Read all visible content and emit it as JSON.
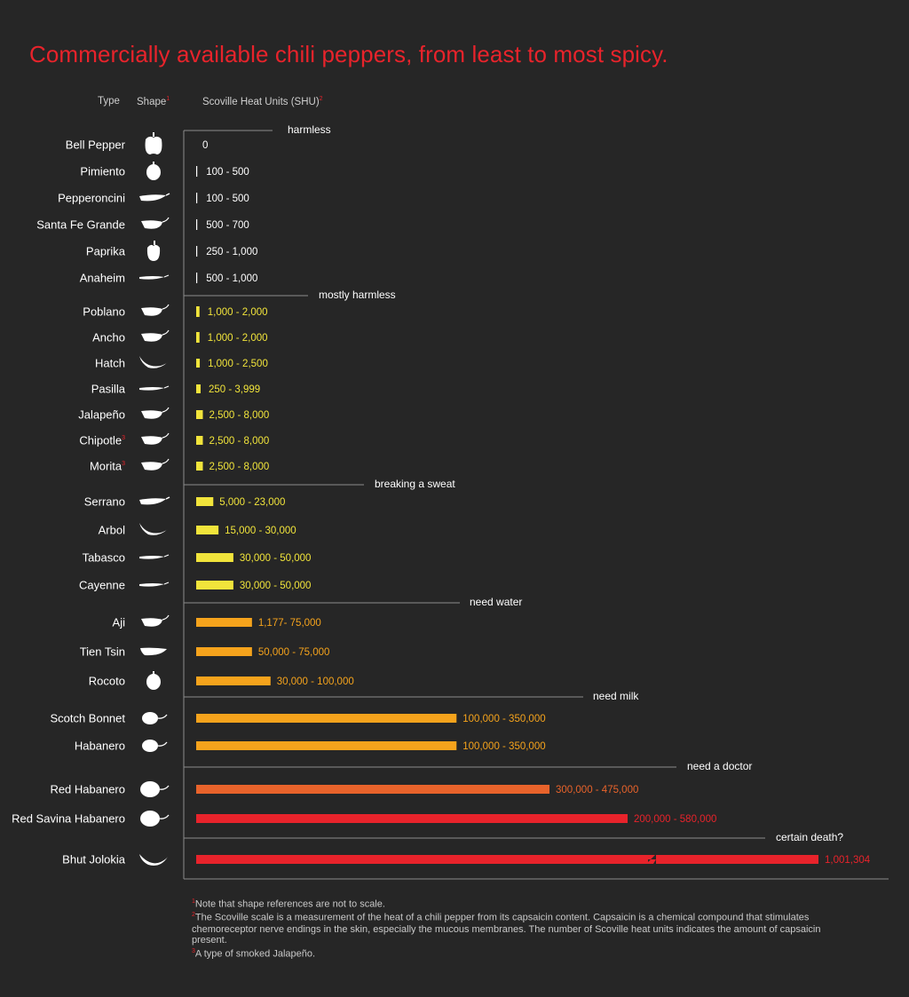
{
  "title": "Commercially available chili peppers, from least to most spicy.",
  "headers": {
    "type": "Type",
    "shape": "Shape",
    "shape_note": "1",
    "shu": "Scoville Heat Units (SHU)",
    "shu_note": "2"
  },
  "colors": {
    "title": "#e8232b",
    "axis": "#8c8c8c",
    "yellow": "#f1e43b",
    "amber": "#f5a31c",
    "orange_red": "#e8632b",
    "red": "#e8232b",
    "white": "#ffffff"
  },
  "chart_data": {
    "type": "bar",
    "orientation": "horizontal",
    "xlabel": "Scoville Heat Units (SHU)",
    "categories": [
      "Bell Pepper",
      "Pimiento",
      "Pepperoncini",
      "Santa Fe Grande",
      "Paprika",
      "Anaheim",
      "Poblano",
      "Ancho",
      "Hatch",
      "Pasilla",
      "Jalapeño",
      "Chipotle",
      "Morita",
      "Serrano",
      "Arbol",
      "Tabasco",
      "Cayenne",
      "Aji",
      "Tien Tsin",
      "Rocoto",
      "Scotch Bonnet",
      "Habanero",
      "Red Habanero",
      "Red Savina Habanero",
      "Bhut Jolokia"
    ],
    "peppers": [
      {
        "name": "Bell Pepper",
        "label": "0",
        "max": 0,
        "color": "#ffffff",
        "shape": "bell-pepper-icon"
      },
      {
        "name": "Pimiento",
        "label": "100 - 500",
        "max": 500,
        "color": "#ffffff",
        "shape": "pimiento-icon"
      },
      {
        "name": "Pepperoncini",
        "label": "100 - 500",
        "max": 500,
        "color": "#ffffff",
        "shape": "pepperoncini-icon"
      },
      {
        "name": "Santa Fe Grande",
        "label": "500 - 700",
        "max": 700,
        "color": "#ffffff",
        "shape": "santa-fe-grande-icon"
      },
      {
        "name": "Paprika",
        "label": "250 - 1,000",
        "max": 1000,
        "color": "#ffffff",
        "shape": "paprika-icon"
      },
      {
        "name": "Anaheim",
        "label": "500 - 1,000",
        "max": 1000,
        "color": "#ffffff",
        "shape": "anaheim-icon"
      },
      {
        "name": "Poblano",
        "label": "1,000 - 2,000",
        "max": 2000,
        "color": "#f1e43b",
        "shape": "poblano-icon"
      },
      {
        "name": "Ancho",
        "label": "1,000 - 2,000",
        "max": 2000,
        "color": "#f1e43b",
        "shape": "ancho-icon"
      },
      {
        "name": "Hatch",
        "label": "1,000 - 2,500",
        "max": 2500,
        "color": "#f1e43b",
        "shape": "hatch-icon"
      },
      {
        "name": "Pasilla",
        "label": "250 - 3,999",
        "max": 3999,
        "color": "#f1e43b",
        "shape": "pasilla-icon"
      },
      {
        "name": "Jalapeño",
        "label": "2,500 - 8,000",
        "max": 8000,
        "color": "#f1e43b",
        "shape": "jalapeno-icon"
      },
      {
        "name": "Chipotle",
        "label": "2,500 - 8,000",
        "max": 8000,
        "color": "#f1e43b",
        "shape": "chipotle-icon",
        "note": "3"
      },
      {
        "name": "Morita",
        "label": "2,500 - 8,000",
        "max": 8000,
        "color": "#f1e43b",
        "shape": "morita-icon",
        "note": "3"
      },
      {
        "name": "Serrano",
        "label": "5,000 - 23,000",
        "max": 23000,
        "color": "#f1e43b",
        "shape": "serrano-icon"
      },
      {
        "name": "Arbol",
        "label": "15,000 - 30,000",
        "max": 30000,
        "color": "#f1e43b",
        "shape": "arbol-icon"
      },
      {
        "name": "Tabasco",
        "label": "30,000 - 50,000",
        "max": 50000,
        "color": "#f1e43b",
        "shape": "tabasco-icon"
      },
      {
        "name": "Cayenne",
        "label": "30,000 - 50,000",
        "max": 50000,
        "color": "#f1e43b",
        "shape": "cayenne-icon"
      },
      {
        "name": "Aji",
        "label": "1,177- 75,000",
        "max": 75000,
        "color": "#f5a31c",
        "shape": "aji-icon"
      },
      {
        "name": "Tien Tsin",
        "label": "50,000 - 75,000",
        "max": 75000,
        "color": "#f5a31c",
        "shape": "tien-tsin-icon"
      },
      {
        "name": "Rocoto",
        "label": "30,000 - 100,000",
        "max": 100000,
        "color": "#f5a31c",
        "shape": "rocoto-icon"
      },
      {
        "name": "Scotch Bonnet",
        "label": "100,000 - 350,000",
        "max": 350000,
        "color": "#f5a31c",
        "shape": "scotch-bonnet-icon"
      },
      {
        "name": "Habanero",
        "label": "100,000 - 350,000",
        "max": 350000,
        "color": "#f5a31c",
        "shape": "habanero-icon"
      },
      {
        "name": "Red Habanero",
        "label": "300,000 - 475,000",
        "max": 475000,
        "color": "#e8632b",
        "shape": "red-habanero-icon"
      },
      {
        "name": "Red Savina Habanero",
        "label": "200,000 - 580,000",
        "max": 580000,
        "color": "#e8232b",
        "shape": "red-savina-habanero-icon"
      },
      {
        "name": "Bhut Jolokia",
        "label": "1,001,304",
        "max": 1001304,
        "color": "#e8232b",
        "shape": "bhut-jolokia-icon",
        "axis_break": true
      }
    ],
    "heat_categories": [
      "harmless",
      "mostly harmless",
      "breaking a sweat",
      "need water",
      "need milk",
      "need a doctor",
      "certain death?"
    ],
    "scale": "linear with axis break for Bhut Jolokia",
    "grid": false,
    "legend": "none"
  },
  "footnotes": [
    {
      "marker": "1",
      "text": "Note that shape references are not to scale."
    },
    {
      "marker": "2",
      "text": "The Scoville scale is a measurement of the heat of a chili pepper from its capsaicin content. Capsaicin is a chemical compound that stimulates chemoreceptor nerve endings in the skin, especially the mucous membranes. The number of Scoville heat units indicates the amount of capsaicin present."
    },
    {
      "marker": "3",
      "text": "A type of smoked Jalapeño."
    }
  ]
}
